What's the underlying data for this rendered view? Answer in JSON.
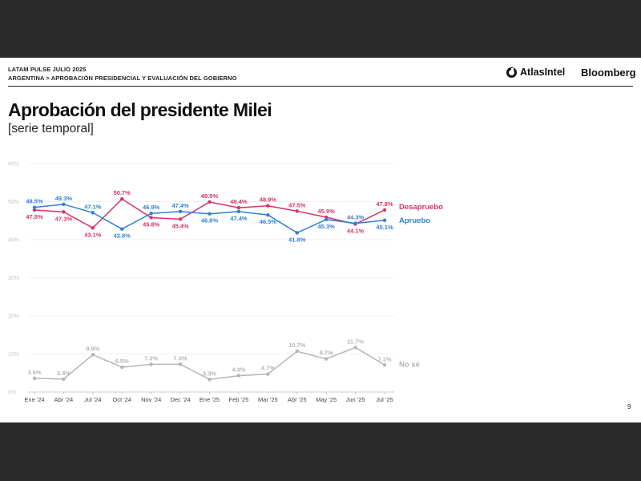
{
  "header": {
    "line1": "LATAM PULSE JULIO 2025",
    "line2": "ARGENTINA > APROBACIÓN PRESIDENCIAL Y EVALUACIÓN DEL GOBIERNO",
    "logo_atlas": "AtlasIntel",
    "logo_bloomberg": "Bloomberg"
  },
  "title": "Aprobación del presidente Milei",
  "subtitle": "[serie temporal]",
  "page_number": "9",
  "colors": {
    "desapruebo": "#d6336c",
    "apruebo": "#2f7fd6",
    "no_se": "#b5b5b5"
  },
  "chart_data": {
    "type": "line",
    "categories": [
      "Ene '24",
      "Abr '24",
      "Jul '24",
      "Oct '24",
      "Nov '24",
      "Dec '24",
      "Ene '25",
      "Feb '25",
      "Mar '25",
      "Abr '25",
      "May '25",
      "Jun '25",
      "Jul '25"
    ],
    "y_ticks": [
      "0%",
      "10%",
      "20%",
      "30%",
      "40%",
      "50%",
      "60%"
    ],
    "ylim": [
      0,
      60
    ],
    "grid": true,
    "series": [
      {
        "name": "Desapruebo",
        "color": "#d6336c",
        "values": [
          47.8,
          47.3,
          43.1,
          50.7,
          45.8,
          45.4,
          49.9,
          48.4,
          48.9,
          47.5,
          45.9,
          44.1,
          47.8
        ],
        "labels": [
          "47.8%",
          "47.3%",
          "43.1%",
          "50.7%",
          "45.8%",
          "45.4%",
          "49.9%",
          "48.4%",
          "48.9%",
          "47.5%",
          "45.9%",
          "44.1%",
          "47.8%"
        ],
        "label_pos": [
          "below",
          "below",
          "below",
          "above",
          "below",
          "below",
          "above",
          "above",
          "above",
          "above",
          "above",
          "below",
          "above"
        ]
      },
      {
        "name": "Apruebo",
        "color": "#2f7fd6",
        "values": [
          48.5,
          49.3,
          47.1,
          42.8,
          46.9,
          47.4,
          46.8,
          47.4,
          46.5,
          41.8,
          45.3,
          44.3,
          45.1
        ],
        "labels": [
          "48.5%",
          "49.3%",
          "47.1%",
          "42.8%",
          "46.9%",
          "47.4%",
          "46.8%",
          "47.4%",
          "46.5%",
          "41.8%",
          "45.3%",
          "44.3%",
          "45.1%"
        ],
        "label_pos": [
          "above",
          "above",
          "above",
          "below",
          "above",
          "above",
          "below",
          "below",
          "below",
          "below",
          "below",
          "above",
          "below"
        ]
      },
      {
        "name": "No sé",
        "color": "#b5b5b5",
        "values": [
          3.6,
          3.4,
          9.8,
          6.5,
          7.3,
          7.3,
          3.3,
          4.3,
          4.7,
          10.7,
          8.7,
          11.7,
          7.1
        ],
        "labels": [
          "3.6%",
          "3.4%",
          "9.8%",
          "6.5%",
          "7.3%",
          "7.3%",
          "3.3%",
          "4.3%",
          "4.7%",
          "10.7%",
          "8.7%",
          "11.7%",
          "7.1%"
        ],
        "label_pos": [
          "above",
          "above",
          "above",
          "above",
          "above",
          "above",
          "above",
          "above",
          "above",
          "above",
          "above",
          "above",
          "above"
        ]
      }
    ]
  }
}
